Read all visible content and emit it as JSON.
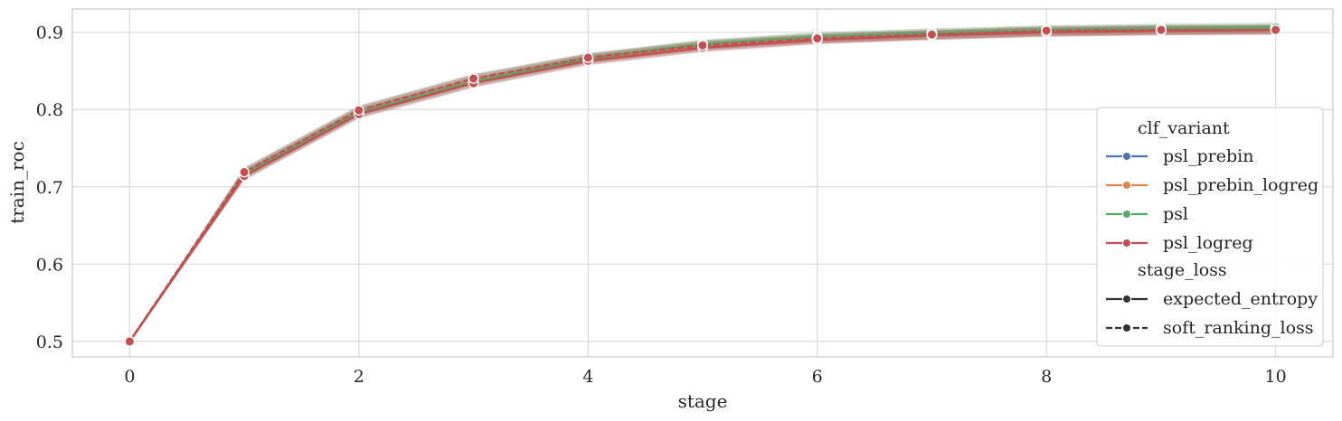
{
  "chart_data": {
    "type": "line",
    "xlabel": "stage",
    "ylabel": "train_roc",
    "xlim": [
      -0.5,
      10.5
    ],
    "ylim": [
      0.48,
      0.93
    ],
    "xticks": [
      0,
      2,
      4,
      6,
      8,
      10
    ],
    "yticks": [
      0.5,
      0.6,
      0.7,
      0.8,
      0.9
    ],
    "xtick_labels": [
      "0",
      "2",
      "4",
      "6",
      "8",
      "10"
    ],
    "ytick_labels": [
      "0.5",
      "0.6",
      "0.7",
      "0.8",
      "0.9"
    ],
    "grid": true,
    "legend_position": "center-right",
    "x": [
      0,
      1,
      2,
      3,
      4,
      5,
      6,
      7,
      8,
      9,
      10
    ],
    "legend": {
      "hue_title": "clf_variant",
      "style_title": "stage_loss",
      "hue_entries": [
        {
          "name": "psl_prebin",
          "color": "#4c72b0"
        },
        {
          "name": "psl_prebin_logreg",
          "color": "#dd8452"
        },
        {
          "name": "psl",
          "color": "#55a868"
        },
        {
          "name": "psl_logreg",
          "color": "#c44e52"
        }
      ],
      "style_entries": [
        {
          "name": "expected_entropy",
          "dash": "solid"
        },
        {
          "name": "soft_ranking_loss",
          "dash": "dashed"
        }
      ]
    },
    "series": [
      {
        "hue": "psl_prebin",
        "style": "expected_entropy",
        "color": "#4c72b0",
        "dash": "solid",
        "values": [
          0.5,
          0.715,
          0.795,
          0.835,
          0.864,
          0.881,
          0.891,
          0.896,
          0.9,
          0.902,
          0.903
        ],
        "ci": 0.006
      },
      {
        "hue": "psl_prebin",
        "style": "soft_ranking_loss",
        "color": "#4c72b0",
        "dash": "dashed",
        "values": [
          0.5,
          0.718,
          0.798,
          0.839,
          0.866,
          0.883,
          0.892,
          0.897,
          0.901,
          0.903,
          0.904
        ],
        "ci": 0.006
      },
      {
        "hue": "psl_prebin_logreg",
        "style": "expected_entropy",
        "color": "#dd8452",
        "dash": "solid",
        "values": [
          0.5,
          0.715,
          0.795,
          0.835,
          0.864,
          0.881,
          0.891,
          0.896,
          0.9,
          0.902,
          0.903
        ],
        "ci": 0.006
      },
      {
        "hue": "psl_prebin_logreg",
        "style": "soft_ranking_loss",
        "color": "#dd8452",
        "dash": "dashed",
        "values": [
          0.5,
          0.718,
          0.798,
          0.839,
          0.866,
          0.883,
          0.892,
          0.897,
          0.901,
          0.903,
          0.904
        ],
        "ci": 0.006
      },
      {
        "hue": "psl",
        "style": "expected_entropy",
        "color": "#55a868",
        "dash": "solid",
        "values": [
          0.5,
          0.716,
          0.796,
          0.836,
          0.866,
          0.884,
          0.894,
          0.899,
          0.903,
          0.905,
          0.906
        ],
        "ci": 0.006
      },
      {
        "hue": "psl",
        "style": "soft_ranking_loss",
        "color": "#55a868",
        "dash": "dashed",
        "values": [
          0.5,
          0.719,
          0.799,
          0.84,
          0.867,
          0.885,
          0.894,
          0.899,
          0.903,
          0.905,
          0.906
        ],
        "ci": 0.006
      },
      {
        "hue": "psl_logreg",
        "style": "expected_entropy",
        "color": "#c44e52",
        "dash": "solid",
        "values": [
          0.5,
          0.714,
          0.794,
          0.834,
          0.863,
          0.88,
          0.89,
          0.896,
          0.9,
          0.902,
          0.903
        ],
        "ci": 0.006
      },
      {
        "hue": "psl_logreg",
        "style": "soft_ranking_loss",
        "color": "#c44e52",
        "dash": "dashed",
        "values": [
          0.5,
          0.719,
          0.799,
          0.84,
          0.867,
          0.883,
          0.892,
          0.897,
          0.902,
          0.903,
          0.903
        ],
        "ci": 0.006
      }
    ]
  }
}
